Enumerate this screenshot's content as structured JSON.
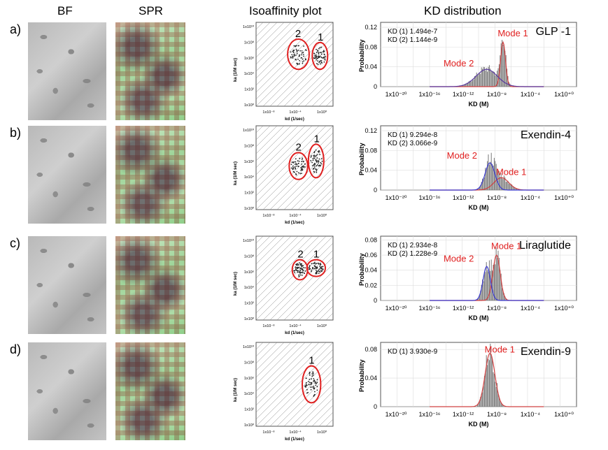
{
  "headers": {
    "bf": "BF",
    "spr": "SPR",
    "iso": "Isoaffinity plot",
    "kd": "KD distribution"
  },
  "row_labels": [
    "a)",
    "b)",
    "c)",
    "d)"
  ],
  "iso_axes": {
    "y": "ka (1/M sec)",
    "x": "kd (1/sec)",
    "yticks": [
      "1x10⁰",
      "1x10²",
      "1x10⁴",
      "1x10⁶",
      "1x10⁸",
      "1x10¹⁰"
    ],
    "xticks": [
      "1x10⁻⁸",
      "1x10⁻⁴",
      "1x10⁰"
    ]
  },
  "kd_axes": {
    "y": "Probability",
    "x": "KD (M)",
    "xticks": [
      "1x10⁻²⁰",
      "1x10⁻¹⁶",
      "1x10⁻¹²",
      "1x10⁻⁸",
      "1x10⁻⁴",
      "1x10⁺⁰"
    ]
  },
  "chart_data": [
    {
      "type": "bar",
      "title": "GLP -1",
      "xlabel": "KD (M)",
      "ylabel": "Probability",
      "yticks": [
        0,
        0.04,
        0.08,
        0.12
      ],
      "ylim": [
        0,
        0.13
      ],
      "kd_values": [
        "KD (1) 1.494e-7",
        "KD (2) 1.144e-9"
      ],
      "modes": [
        {
          "name": "Mode 1",
          "center_log": -7,
          "sigma": 0.3,
          "peak": 0.09,
          "color": "#d04040"
        },
        {
          "name": "Mode 2",
          "center_log": -9,
          "sigma": 1.3,
          "peak": 0.035,
          "color": "#5a3aa0"
        }
      ],
      "iso_clusters": [
        {
          "label": "2"
        },
        {
          "label": "1"
        }
      ]
    },
    {
      "type": "bar",
      "title": "Exendin-4",
      "xlabel": "KD (M)",
      "ylabel": "Probability",
      "yticks": [
        0,
        0.04,
        0.08,
        0.12
      ],
      "ylim": [
        0,
        0.13
      ],
      "kd_values": [
        "KD (1) 9.294e-8",
        "KD (2) 3.066e-9"
      ],
      "modes": [
        {
          "name": "Mode 1",
          "center_log": -7.2,
          "sigma": 0.9,
          "peak": 0.025,
          "color": "#d04040"
        },
        {
          "name": "Mode 2",
          "center_log": -8.6,
          "sigma": 0.6,
          "peak": 0.055,
          "color": "#3a3ad0"
        }
      ],
      "iso_clusters": [
        {
          "label": "2"
        },
        {
          "label": "1"
        }
      ]
    },
    {
      "type": "bar",
      "title": "Liraglutide",
      "xlabel": "KD (M)",
      "ylabel": "Probability",
      "yticks": [
        0,
        0.02,
        0.04,
        0.06,
        0.08
      ],
      "ylim": [
        0,
        0.085
      ],
      "kd_values": [
        "KD (1) 2.934e-8",
        "KD (2) 1.228e-9"
      ],
      "modes": [
        {
          "name": "Mode 1",
          "center_log": -7.8,
          "sigma": 0.45,
          "peak": 0.06,
          "color": "#d04040"
        },
        {
          "name": "Mode 2",
          "center_log": -9,
          "sigma": 0.45,
          "peak": 0.045,
          "color": "#3a3ad0"
        }
      ],
      "iso_clusters": [
        {
          "label": "2"
        },
        {
          "label": "1"
        }
      ]
    },
    {
      "type": "bar",
      "title": "Exendin-9",
      "xlabel": "KD (M)",
      "ylabel": "Probability",
      "yticks": [
        0,
        0.04,
        0.08
      ],
      "ylim": [
        0,
        0.09
      ],
      "kd_values": [
        "KD (1) 3.930e-9"
      ],
      "modes": [
        {
          "name": "Mode 1",
          "center_log": -8.6,
          "sigma": 0.6,
          "peak": 0.075,
          "color": "#d04040"
        }
      ],
      "iso_clusters": [
        {
          "label": "1"
        }
      ]
    }
  ]
}
